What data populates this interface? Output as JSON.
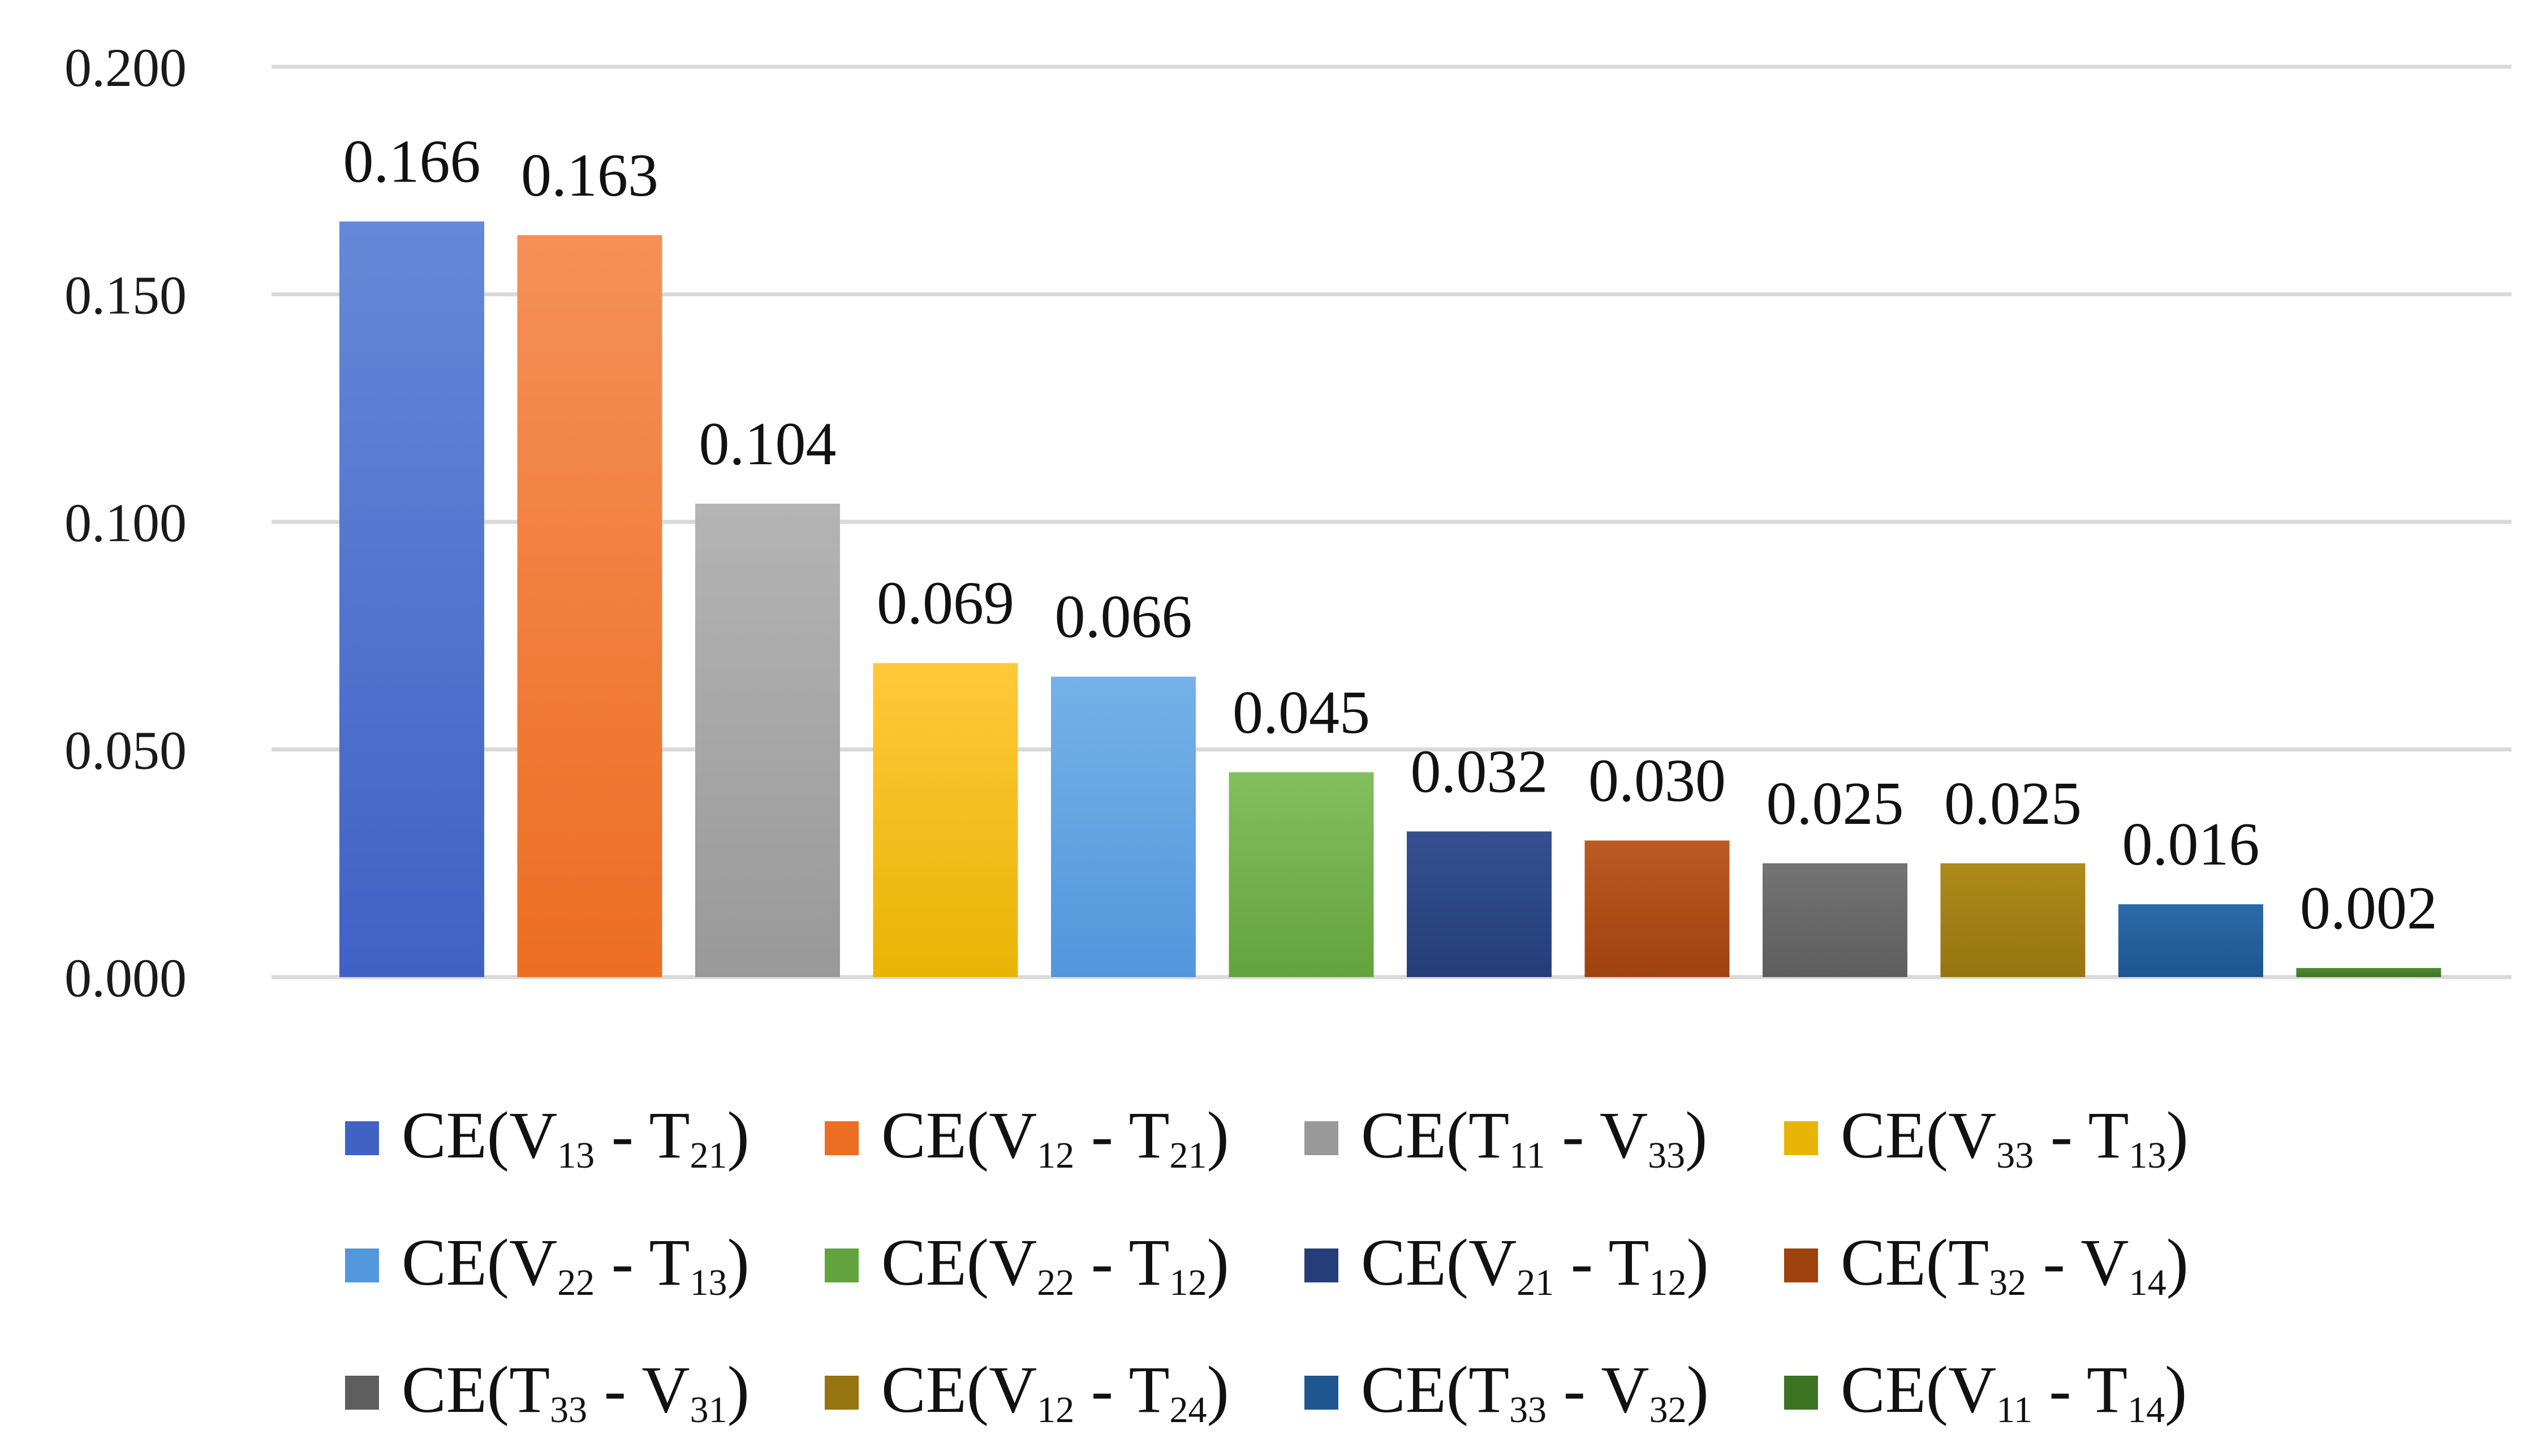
{
  "chart_data": {
    "type": "bar",
    "ylim": [
      0,
      0.2
    ],
    "yticks": [
      "0.000",
      "0.050",
      "0.100",
      "0.150",
      "0.200"
    ],
    "grid": true,
    "legend_position": "bottom",
    "categories": [
      {
        "parts": [
          "CE(V",
          "13",
          " - T",
          "21",
          ")"
        ],
        "value": 0.166,
        "label": "0.166",
        "color_top": "#6688d8",
        "color_bottom": "#3f62c4"
      },
      {
        "parts": [
          "CE(V",
          "12",
          " - T",
          "21",
          ")"
        ],
        "value": 0.163,
        "label": "0.163",
        "color_top": "#f59058",
        "color_bottom": "#ec6e22"
      },
      {
        "parts": [
          "CE(T",
          "11",
          " - V",
          "33",
          ")"
        ],
        "value": 0.104,
        "label": "0.104",
        "color_top": "#b4b4b4",
        "color_bottom": "#999999"
      },
      {
        "parts": [
          "CE(V",
          "33",
          " - T",
          "13",
          ")"
        ],
        "value": 0.069,
        "label": "0.069",
        "color_top": "#ffc93a",
        "color_bottom": "#e9b405"
      },
      {
        "parts": [
          "CE(V",
          "22",
          " - T",
          "13",
          ")"
        ],
        "value": 0.066,
        "label": "0.066",
        "color_top": "#74b1e8",
        "color_bottom": "#5297dc"
      },
      {
        "parts": [
          "CE(V",
          "22",
          " - T",
          "12",
          ")"
        ],
        "value": 0.045,
        "label": "0.045",
        "color_top": "#82c05e",
        "color_bottom": "#63a33d"
      },
      {
        "parts": [
          "CE(V",
          "21",
          " - T",
          "12",
          ")"
        ],
        "value": 0.032,
        "label": "0.032",
        "color_top": "#36508f",
        "color_bottom": "#253e78"
      },
      {
        "parts": [
          "CE(T",
          "32",
          " - V",
          "14",
          ")"
        ],
        "value": 0.03,
        "label": "0.030",
        "color_top": "#bc5a22",
        "color_bottom": "#9e4210"
      },
      {
        "parts": [
          "CE(T",
          "33",
          " - V",
          "31",
          ")"
        ],
        "value": 0.025,
        "label": "0.025",
        "color_top": "#737373",
        "color_bottom": "#5e5e5e"
      },
      {
        "parts": [
          "CE(V",
          "12",
          " - T",
          "24",
          ")"
        ],
        "value": 0.025,
        "label": "0.025",
        "color_top": "#ae8a1a",
        "color_bottom": "#967510"
      },
      {
        "parts": [
          "CE(T",
          "33",
          " - V",
          "32",
          ")"
        ],
        "value": 0.016,
        "label": "0.016",
        "color_top": "#2c6aa8",
        "color_bottom": "#1f5690"
      },
      {
        "parts": [
          "CE(V",
          "11",
          " - T",
          "14",
          ")"
        ],
        "value": 0.002,
        "label": "0.002",
        "color_top": "#4f8a32",
        "color_bottom": "#3c7424"
      }
    ]
  }
}
